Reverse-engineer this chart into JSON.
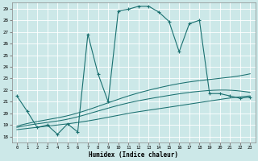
{
  "xlabel": "Humidex (Indice chaleur)",
  "background_color": "#cce8e8",
  "grid_color": "#ffffff",
  "line_color": "#1a7070",
  "xlim": [
    -0.5,
    23.5
  ],
  "ylim": [
    17.5,
    29.5
  ],
  "xticks": [
    0,
    1,
    2,
    3,
    4,
    5,
    6,
    7,
    8,
    9,
    10,
    11,
    12,
    13,
    14,
    15,
    16,
    17,
    18,
    19,
    20,
    21,
    22,
    23
  ],
  "yticks": [
    18,
    19,
    20,
    21,
    22,
    23,
    24,
    25,
    26,
    27,
    28,
    29
  ],
  "curve1_x": [
    0,
    1,
    2,
    3,
    4,
    5,
    6,
    7,
    8,
    9,
    10,
    11,
    12,
    13,
    14,
    15,
    16,
    17,
    18,
    19,
    20,
    21,
    22,
    23
  ],
  "curve1_y": [
    21.5,
    20.2,
    18.8,
    19.0,
    18.2,
    19.1,
    18.4,
    26.8,
    23.4,
    21.0,
    28.8,
    28.95,
    29.2,
    29.2,
    28.7,
    27.9,
    25.3,
    27.7,
    28.0,
    21.7,
    21.7,
    21.5,
    21.3,
    21.4
  ],
  "curve_flat1_x": [
    0,
    2,
    5,
    8,
    11,
    14,
    17,
    20,
    23
  ],
  "curve_flat1_y": [
    18.6,
    18.8,
    19.1,
    19.5,
    20.0,
    20.4,
    20.8,
    21.2,
    21.5
  ],
  "curve_flat2_x": [
    0,
    2,
    5,
    8,
    11,
    14,
    17,
    20,
    23
  ],
  "curve_flat2_y": [
    18.8,
    19.1,
    19.5,
    20.2,
    20.9,
    21.4,
    21.8,
    22.0,
    21.8
  ],
  "curve_flat3_x": [
    0,
    2,
    5,
    8,
    11,
    14,
    17,
    20,
    23
  ],
  "curve_flat3_y": [
    18.9,
    19.3,
    19.8,
    20.6,
    21.5,
    22.2,
    22.7,
    23.0,
    23.4
  ]
}
